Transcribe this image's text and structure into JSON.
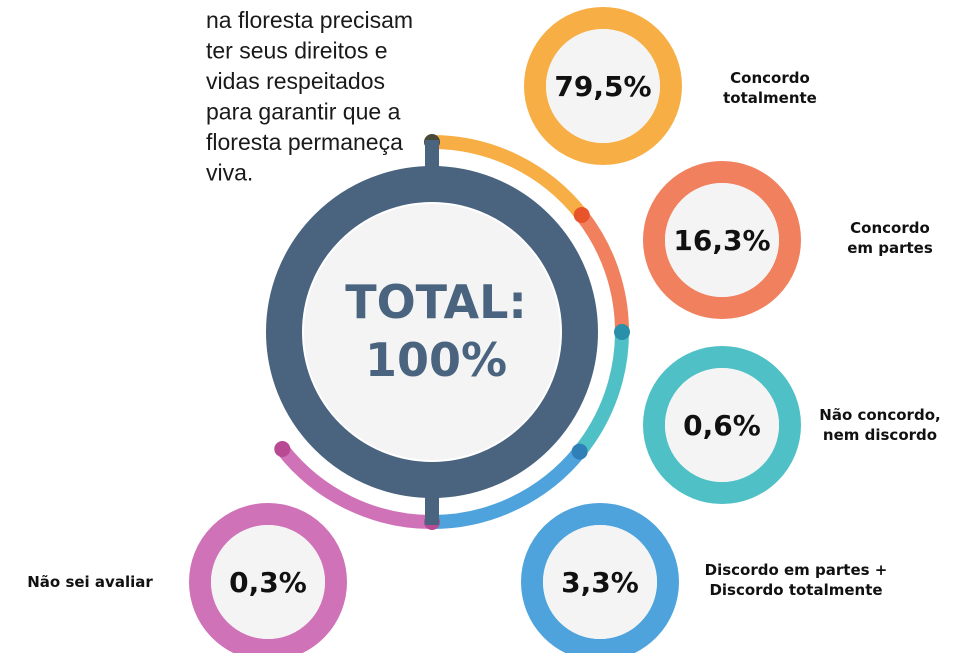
{
  "intro": [
    "na floresta precisam",
    "ter seus direitos e",
    "vidas respeitados",
    "para garantir que a",
    "floresta permaneça",
    "viva."
  ],
  "center": [
    "TOTAL:",
    "100%"
  ],
  "items": [
    {
      "value": "79,5%",
      "label": [
        "Concordo",
        "totalmente"
      ]
    },
    {
      "value": "16,3%",
      "label": [
        "Concordo",
        "em partes"
      ]
    },
    {
      "value": "0,6%",
      "label": [
        "Não concordo,",
        "nem discordo"
      ]
    },
    {
      "value": "3,3%",
      "label": [
        "Discordo em partes +",
        "Discordo totalmente"
      ]
    },
    {
      "value": "0,3%",
      "label": [
        "Não sei avaliar"
      ]
    }
  ]
}
